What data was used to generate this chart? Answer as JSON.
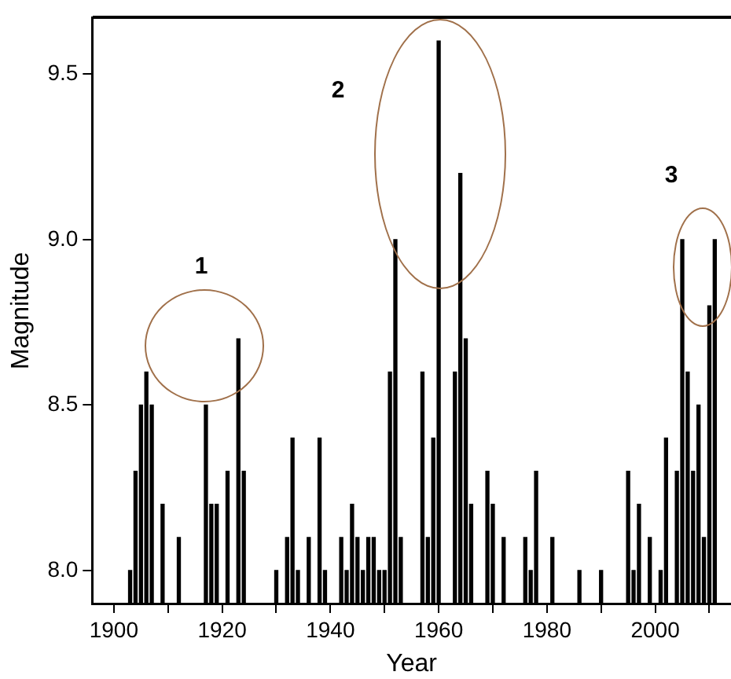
{
  "chart_data": {
    "type": "bar",
    "xlabel": "Year",
    "ylabel": "Magnitude",
    "x": [
      1903,
      1904,
      1905,
      1906,
      1907,
      1909,
      1912,
      1917,
      1918,
      1919,
      1921,
      1923,
      1924,
      1930,
      1932,
      1933,
      1934,
      1936,
      1938,
      1939,
      1942,
      1943,
      1944,
      1945,
      1946,
      1947,
      1948,
      1949,
      1950,
      1951,
      1952,
      1953,
      1957,
      1958,
      1959,
      1960,
      1963,
      1964,
      1965,
      1966,
      1969,
      1970,
      1972,
      1976,
      1977,
      1978,
      1981,
      1986,
      1990,
      1995,
      1996,
      1997,
      1999,
      2001,
      2002,
      2004,
      2005,
      2006,
      2007,
      2008,
      2009,
      2010,
      2011
    ],
    "values": [
      8.0,
      8.3,
      8.5,
      8.6,
      8.5,
      8.2,
      8.1,
      8.5,
      8.2,
      8.2,
      8.3,
      8.7,
      8.3,
      8.0,
      8.1,
      8.4,
      8.0,
      8.1,
      8.4,
      8.0,
      8.1,
      8.0,
      8.2,
      8.1,
      8.0,
      8.1,
      8.1,
      8.0,
      8.0,
      8.6,
      9.0,
      8.1,
      8.6,
      8.1,
      8.4,
      9.6,
      8.6,
      9.2,
      8.7,
      8.2,
      8.3,
      8.2,
      8.1,
      8.1,
      8.0,
      8.3,
      8.1,
      8.0,
      8.0,
      8.3,
      8.0,
      8.2,
      8.1,
      8.0,
      8.4,
      8.3,
      9.0,
      8.6,
      8.3,
      8.5,
      8.1,
      8.8,
      9.0
    ],
    "color": "#000000",
    "xlim": [
      1896,
      2014
    ],
    "xticks": [
      1900,
      {
        "value": 1910,
        "label": null
      },
      1920,
      {
        "value": 1930,
        "label": null
      },
      1940,
      {
        "value": 1950,
        "label": null
      },
      1960,
      {
        "value": 1970,
        "label": null
      },
      1980,
      {
        "value": 1990,
        "label": null
      },
      2000,
      {
        "value": 2010,
        "label": null
      }
    ],
    "ylim": [
      7.9,
      9.67
    ],
    "yticks": [
      {
        "value": 8,
        "label": "8.0"
      },
      8.5,
      {
        "value": 9,
        "label": "9.0"
      },
      9.5
    ],
    "grid": false,
    "legend": false,
    "annotations": [
      "1",
      "2",
      "3"
    ]
  }
}
